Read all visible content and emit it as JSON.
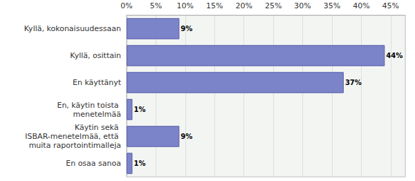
{
  "chart_data": {
    "type": "bar",
    "orientation": "horizontal",
    "categories": [
      "Kyllä, kokonaisuudessaan",
      "Kyllä, osittain",
      "En käyttänyt",
      "En, käytin toista menetelmää",
      "Käytin sekä ISBAR-menetelmää, että muita raportointimalleja",
      "En osaa sanoa"
    ],
    "values": [
      9,
      44,
      37,
      1,
      9,
      1
    ],
    "value_labels": [
      "9%",
      "44%",
      "37%",
      "1%",
      "9%",
      "1%"
    ],
    "color": "#7b83c9",
    "xlim": [
      0,
      47.5
    ],
    "xticks": [
      {
        "value": 0,
        "label": "0%"
      },
      {
        "value": 5,
        "label": "5%"
      },
      {
        "value": 10,
        "label": "10%"
      },
      {
        "value": 15,
        "label": "15%"
      },
      {
        "value": 20,
        "label": "20%"
      },
      {
        "value": 25,
        "label": "25%"
      },
      {
        "value": 30,
        "label": "30%"
      },
      {
        "value": 35,
        "label": "35%"
      },
      {
        "value": 40,
        "label": "40%"
      },
      {
        "value": 45,
        "label": "45%"
      }
    ],
    "grid": true,
    "data_labels": true
  }
}
